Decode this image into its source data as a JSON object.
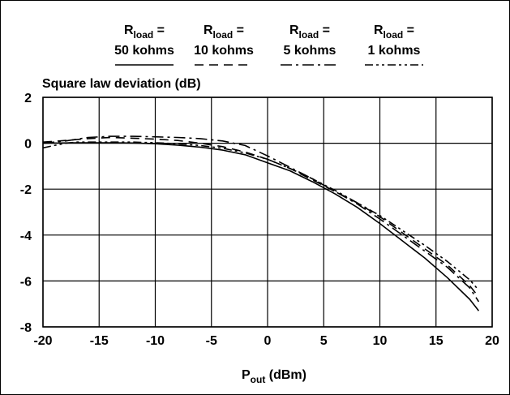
{
  "chart_data": {
    "type": "line",
    "title": "",
    "ylabel": "Square law deviation (dB)",
    "xlabel_main": "P",
    "xlabel_sub": "out",
    "xlabel_unit": "(dBm)",
    "xlim": [
      -20,
      20
    ],
    "ylim": [
      -8,
      2
    ],
    "xticks": [
      "-20",
      "-15",
      "-10",
      "-5",
      "0",
      "5",
      "10",
      "15",
      "20"
    ],
    "yticks": [
      "2",
      "0",
      "-2",
      "-4",
      "-6",
      "-8"
    ],
    "grid": true,
    "legend_position": "top",
    "series": [
      {
        "legend_top": "R",
        "legend_sub": "load",
        "legend_eq": " =",
        "name": "50 kohms",
        "style": "solid",
        "x": [
          -20,
          -17,
          -14,
          -12,
          -10,
          -8,
          -6,
          -4,
          -2,
          0,
          2,
          4,
          6,
          8,
          10,
          12,
          14,
          16,
          18,
          18.8
        ],
        "y": [
          0,
          0.02,
          0.02,
          0.01,
          -0.02,
          -0.08,
          -0.17,
          -0.3,
          -0.5,
          -0.85,
          -1.2,
          -1.68,
          -2.2,
          -2.8,
          -3.5,
          -4.25,
          -5.0,
          -5.85,
          -6.8,
          -7.3
        ]
      },
      {
        "legend_top": "R",
        "legend_sub": "load",
        "legend_eq": " =",
        "name": "10 kohms",
        "style": "dashed",
        "x": [
          -20,
          -18,
          -16,
          -14,
          -12,
          -10,
          -8,
          -6,
          -4,
          -2,
          0,
          2,
          4,
          6,
          8,
          10,
          12,
          14,
          16,
          18,
          18.8
        ],
        "y": [
          0.05,
          0.12,
          0.2,
          0.25,
          0.22,
          0.18,
          0.12,
          0.0,
          -0.15,
          -0.38,
          -0.7,
          -1.1,
          -1.6,
          -2.1,
          -2.6,
          -3.2,
          -3.9,
          -4.6,
          -5.3,
          -6.2,
          -6.7
        ]
      },
      {
        "legend_top": "R",
        "legend_sub": "load",
        "legend_eq": " =",
        "name": "5 kohms",
        "style": "dashdot",
        "x": [
          -20,
          -18,
          -16,
          -14,
          -12,
          -10,
          -8,
          -6,
          -4,
          -2,
          0,
          2,
          4,
          6,
          8,
          10,
          12,
          14,
          16,
          18,
          18.8
        ],
        "y": [
          0.0,
          0.1,
          0.25,
          0.3,
          0.3,
          0.28,
          0.25,
          0.2,
          0.1,
          -0.1,
          -0.55,
          -1.05,
          -1.55,
          -2.1,
          -2.65,
          -3.3,
          -4.0,
          -4.7,
          -5.4,
          -6.3,
          -6.9
        ]
      },
      {
        "legend_top": "R",
        "legend_sub": "load",
        "legend_eq": " =",
        "name": "1 kohms",
        "style": "dashdotdot",
        "x": [
          -20,
          -19,
          -18,
          -17,
          -16,
          -14,
          -12,
          -10,
          -8,
          -6,
          -4,
          -2,
          0,
          2,
          4,
          6,
          8,
          10,
          12,
          14,
          16,
          18,
          18.8
        ],
        "y": [
          -0.2,
          -0.1,
          0.0,
          0.05,
          0.05,
          0.05,
          0.05,
          0.02,
          -0.02,
          -0.1,
          -0.22,
          -0.42,
          -0.7,
          -1.1,
          -1.55,
          -2.05,
          -2.6,
          -3.15,
          -3.8,
          -4.45,
          -5.15,
          -5.95,
          -6.4
        ]
      }
    ]
  }
}
